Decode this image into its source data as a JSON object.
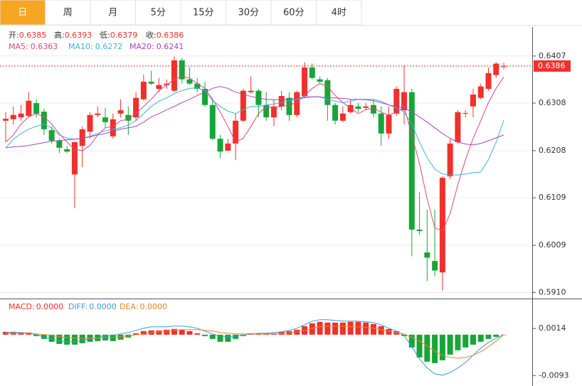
{
  "chart_data": {
    "type": "candlestick",
    "tabs": [
      "日",
      "周",
      "月",
      "5分",
      "15分",
      "30分",
      "60分",
      "4时"
    ],
    "active_tab": 0,
    "ohlc_labels": [
      "开:",
      "高:",
      "低:",
      "收:"
    ],
    "up_color": "#f0302a",
    "down_color": "#16a637",
    "ylim": [
      0.59,
      0.6468
    ],
    "yticks": [
      0.6407,
      {
        "value": 0.6308,
        "label": "0.6308"
      },
      {
        "value": 0.6208,
        "label": "0.6208"
      },
      {
        "value": 0.6109,
        "label": "0.6109"
      },
      {
        "value": 0.6009,
        "label": "0.6009"
      },
      {
        "value": 0.591,
        "label": "0.5910"
      }
    ],
    "open": [
      0.6271,
      0.6274,
      0.6278,
      0.6281,
      0.6308,
      0.629,
      0.6251,
      0.6229,
      0.6211,
      0.6158,
      0.6218,
      0.6248,
      0.6283,
      0.6278,
      0.6238,
      0.6286,
      0.6283,
      0.6278,
      0.6316,
      0.6353,
      0.6338,
      0.6346,
      0.6334,
      0.6398,
      0.6358,
      0.6349,
      0.6338,
      0.6304,
      0.6233,
      0.6208,
      0.6223,
      0.6271,
      0.6331,
      0.6334,
      0.6304,
      0.6278,
      0.6301,
      0.6319,
      0.6283,
      0.6323,
      0.6383,
      0.6358,
      0.6356,
      0.6304,
      0.6271,
      0.6289,
      0.6301,
      0.6298,
      0.6304,
      0.6286,
      0.6244,
      0.6286,
      0.6293,
      0.6331,
      0.6042,
      0.5994,
      0.5976,
      0.5952,
      0.6154,
      0.6226,
      0.6286,
      0.6301,
      0.6319,
      0.6338,
      0.6367,
      0.6385
    ],
    "high": [
      0.6289,
      0.6301,
      0.6304,
      0.6331,
      0.6316,
      0.6296,
      0.6259,
      0.6233,
      0.6218,
      0.6226,
      0.6259,
      0.6289,
      0.6301,
      0.6298,
      0.6286,
      0.6316,
      0.6301,
      0.6331,
      0.6368,
      0.6376,
      0.6361,
      0.6358,
      0.6406,
      0.6403,
      0.6383,
      0.6361,
      0.6353,
      0.6316,
      0.6241,
      0.6233,
      0.6286,
      0.6338,
      0.6364,
      0.6338,
      0.6331,
      0.6316,
      0.6334,
      0.6331,
      0.6334,
      0.6394,
      0.6391,
      0.6364,
      0.6361,
      0.6308,
      0.6301,
      0.6316,
      0.6308,
      0.6308,
      0.6316,
      0.6301,
      0.6301,
      0.6343,
      0.6388,
      0.6338,
      0.6121,
      0.6084,
      0.6084,
      0.6154,
      0.6233,
      0.6293,
      0.6293,
      0.6338,
      0.6349,
      0.6383,
      0.6394,
      0.6393
    ],
    "low": [
      0.6226,
      0.6263,
      0.6271,
      0.6278,
      0.6278,
      0.6241,
      0.6223,
      0.6203,
      0.6203,
      0.6087,
      0.6173,
      0.6233,
      0.6278,
      0.6256,
      0.6233,
      0.6278,
      0.6241,
      0.6271,
      0.6313,
      0.6346,
      0.6331,
      0.6338,
      0.6331,
      0.6349,
      0.6346,
      0.6331,
      0.6301,
      0.623,
      0.6193,
      0.6208,
      0.6188,
      0.6268,
      0.6328,
      0.6278,
      0.6271,
      0.6259,
      0.6293,
      0.6271,
      0.6278,
      0.632,
      0.6358,
      0.6349,
      0.6271,
      0.6263,
      0.6268,
      0.6286,
      0.6289,
      0.6293,
      0.6278,
      0.6218,
      0.6233,
      0.6281,
      0.6263,
      0.5986,
      0.6031,
      0.5934,
      0.5944,
      0.5914,
      0.6148,
      0.6223,
      0.6278,
      0.6278,
      0.6316,
      0.6334,
      0.6361,
      0.6379
    ],
    "close": [
      0.6275,
      0.6283,
      0.6286,
      0.6313,
      0.6286,
      0.6253,
      0.6229,
      0.6214,
      0.6206,
      0.6226,
      0.6253,
      0.6283,
      0.6286,
      0.6268,
      0.6274,
      0.6293,
      0.6271,
      0.6319,
      0.6353,
      0.6349,
      0.6346,
      0.6349,
      0.6398,
      0.6358,
      0.6349,
      0.6338,
      0.6304,
      0.6233,
      0.6206,
      0.6223,
      0.6271,
      0.6334,
      0.6334,
      0.6304,
      0.6278,
      0.6301,
      0.6323,
      0.6283,
      0.6331,
      0.6383,
      0.6361,
      0.6353,
      0.6304,
      0.6271,
      0.6286,
      0.6304,
      0.6296,
      0.6301,
      0.6286,
      0.6244,
      0.6283,
      0.6338,
      0.6331,
      0.6042,
      0.6039,
      0.5983,
      0.5956,
      0.6151,
      0.6223,
      0.6289,
      0.6287,
      0.6326,
      0.6343,
      0.6371,
      0.6391,
      0.6386
    ],
    "ma_series": [
      {
        "name": "MA5:",
        "color": "#e2457f",
        "values": [
          0.6226,
          0.6241,
          0.6264,
          0.6279,
          0.6286,
          0.6279,
          0.6264,
          0.6244,
          0.6226,
          0.6211,
          0.6208,
          0.6219,
          0.6241,
          0.6256,
          0.6259,
          0.6271,
          0.6274,
          0.6286,
          0.6301,
          0.6316,
          0.6334,
          0.6346,
          0.6358,
          0.6364,
          0.6361,
          0.6349,
          0.6339,
          0.6316,
          0.6289,
          0.6259,
          0.6226,
          0.6234,
          0.6259,
          0.6286,
          0.6301,
          0.6298,
          0.6301,
          0.6304,
          0.6309,
          0.6324,
          0.6339,
          0.6349,
          0.6343,
          0.6324,
          0.6309,
          0.6298,
          0.6286,
          0.6294,
          0.6298,
          0.6289,
          0.6283,
          0.6289,
          0.6301,
          0.6241,
          0.6181,
          0.6106,
          0.6046,
          0.6039,
          0.6076,
          0.6136,
          0.6189,
          0.6234,
          0.6271,
          0.6309,
          0.6339,
          0.6363
        ]
      },
      {
        "name": "MA10:",
        "color": "#3cb4d6",
        "values": [
          0.6214,
          0.6232,
          0.6244,
          0.6253,
          0.6259,
          0.6264,
          0.6256,
          0.6241,
          0.6234,
          0.6232,
          0.6234,
          0.6238,
          0.6244,
          0.625,
          0.6253,
          0.6256,
          0.6262,
          0.6271,
          0.6286,
          0.6301,
          0.6312,
          0.6319,
          0.6328,
          0.6334,
          0.6339,
          0.634,
          0.6334,
          0.6313,
          0.6301,
          0.6291,
          0.6286,
          0.6294,
          0.6301,
          0.6301,
          0.6304,
          0.6306,
          0.6309,
          0.6313,
          0.6316,
          0.6319,
          0.6321,
          0.6321,
          0.6316,
          0.6312,
          0.6309,
          0.6312,
          0.6316,
          0.6316,
          0.6316,
          0.6312,
          0.6304,
          0.6298,
          0.6289,
          0.6264,
          0.6226,
          0.6193,
          0.6169,
          0.6159,
          0.6157,
          0.6157,
          0.6159,
          0.6162,
          0.6163,
          0.6189,
          0.6226,
          0.6272
        ]
      },
      {
        "name": "MA20:",
        "color": "#a844b8",
        "values": [
          0.6214,
          0.6216,
          0.6217,
          0.6219,
          0.6222,
          0.6225,
          0.6228,
          0.6229,
          0.6231,
          0.6232,
          0.6234,
          0.6237,
          0.6241,
          0.6244,
          0.6249,
          0.6253,
          0.6256,
          0.6259,
          0.6268,
          0.6279,
          0.6286,
          0.6294,
          0.6301,
          0.6309,
          0.6316,
          0.6324,
          0.6331,
          0.6339,
          0.6343,
          0.6339,
          0.6331,
          0.6327,
          0.6322,
          0.6319,
          0.6316,
          0.6315,
          0.6316,
          0.6316,
          0.6318,
          0.6321,
          0.6321,
          0.6321,
          0.6319,
          0.6319,
          0.6318,
          0.6316,
          0.6316,
          0.6315,
          0.6313,
          0.6309,
          0.6304,
          0.6301,
          0.6298,
          0.6289,
          0.6279,
          0.6268,
          0.6256,
          0.6244,
          0.6234,
          0.6226,
          0.6222,
          0.622,
          0.6223,
          0.6229,
          0.6235,
          0.6241
        ]
      }
    ],
    "macd": {
      "ylim": [
        -0.0112,
        0.0079
      ],
      "yticks": [
        0.0014,
        -0.0093
      ],
      "histogram": {
        "name": "MACD:",
        "color": "#f0302a",
        "current_label": "0.0000",
        "values": [
          0.00065,
          0.00065,
          0.00049,
          0.00049,
          -0.00032,
          -0.00097,
          -0.00162,
          -0.00211,
          -0.00227,
          -0.00227,
          -0.00194,
          -0.00162,
          -0.00146,
          -0.0013,
          -0.00146,
          -0.00113,
          -0.00065,
          0.00032,
          0.00081,
          0.00097,
          0.00097,
          0.00113,
          0.0013,
          0.00113,
          0.00081,
          0.00032,
          -0.00032,
          -0.00097,
          -0.00162,
          -0.00162,
          -0.00097,
          -0.00032,
          0.00032,
          0.00032,
          0.00032,
          0.00032,
          0.00065,
          0.00081,
          0.00113,
          0.00194,
          0.00259,
          0.00292,
          0.00275,
          0.00275,
          0.00275,
          0.00292,
          0.00292,
          0.00275,
          0.00243,
          0.00194,
          0.0013,
          0.00081,
          -0.00032,
          -0.00292,
          -0.00518,
          -0.00616,
          -0.00648,
          -0.00583,
          -0.00454,
          -0.00356,
          -0.00292,
          -0.00227,
          -0.00162,
          -0.00097,
          -0.00049,
          0
        ]
      },
      "lines": [
        {
          "name": "DIFF:",
          "color": "#3a9ad9",
          "current_label": "0.0000",
          "values": [
            0.00049,
            0.00049,
            0.00049,
            0.00032,
            0,
            -0.00049,
            -0.00097,
            -0.00146,
            -0.00162,
            -0.00162,
            -0.0013,
            -0.00097,
            -0.00065,
            -0.00032,
            -0.00016,
            0.00016,
            0.00049,
            0.00097,
            0.00146,
            0.00178,
            0.00178,
            0.00178,
            0.00194,
            0.00194,
            0.00178,
            0.00146,
            0.00081,
            0.00016,
            -0.00032,
            -0.00049,
            -0.00032,
            -0.00016,
            0.00016,
            0.00032,
            0.00032,
            0.00049,
            0.00065,
            0.00097,
            0.00146,
            0.00227,
            0.00308,
            0.0034,
            0.0034,
            0.00324,
            0.00308,
            0.00308,
            0.00308,
            0.00292,
            0.00275,
            0.00227,
            0.00146,
            0.00081,
            -0.00016,
            -0.00275,
            -0.00551,
            -0.00761,
            -0.00891,
            -0.00923,
            -0.00859,
            -0.00761,
            -0.00632,
            -0.0047,
            -0.00308,
            -0.00178,
            -0.00081,
            0
          ]
        },
        {
          "name": "DEA:",
          "color": "#e8842c",
          "current_label": "0.0000",
          "values": [
            0.00032,
            0.00032,
            0.00032,
            0.00032,
            0.00016,
            0,
            -0.00016,
            -0.00049,
            -0.00065,
            -0.00081,
            -0.00081,
            -0.00081,
            -0.00081,
            -0.00065,
            -0.00065,
            -0.00049,
            -0.00032,
            0,
            0.00016,
            0.00049,
            0.00065,
            0.00081,
            0.00097,
            0.00113,
            0.00113,
            0.00113,
            0.00097,
            0.00081,
            0.00049,
            0.00032,
            0.00016,
            0.00016,
            0.00016,
            0.00016,
            0.00016,
            0.00016,
            0.00032,
            0.00049,
            0.00065,
            0.00097,
            0.00146,
            0.00178,
            0.00194,
            0.00194,
            0.00194,
            0.00178,
            0.00178,
            0.00162,
            0.00146,
            0.00113,
            0.00081,
            0.00049,
            0.00016,
            -0.00065,
            -0.00146,
            -0.00259,
            -0.00373,
            -0.0047,
            -0.00518,
            -0.00535,
            -0.00518,
            -0.0047,
            -0.00389,
            -0.00275,
            -0.00146,
            0
          ]
        }
      ]
    }
  }
}
